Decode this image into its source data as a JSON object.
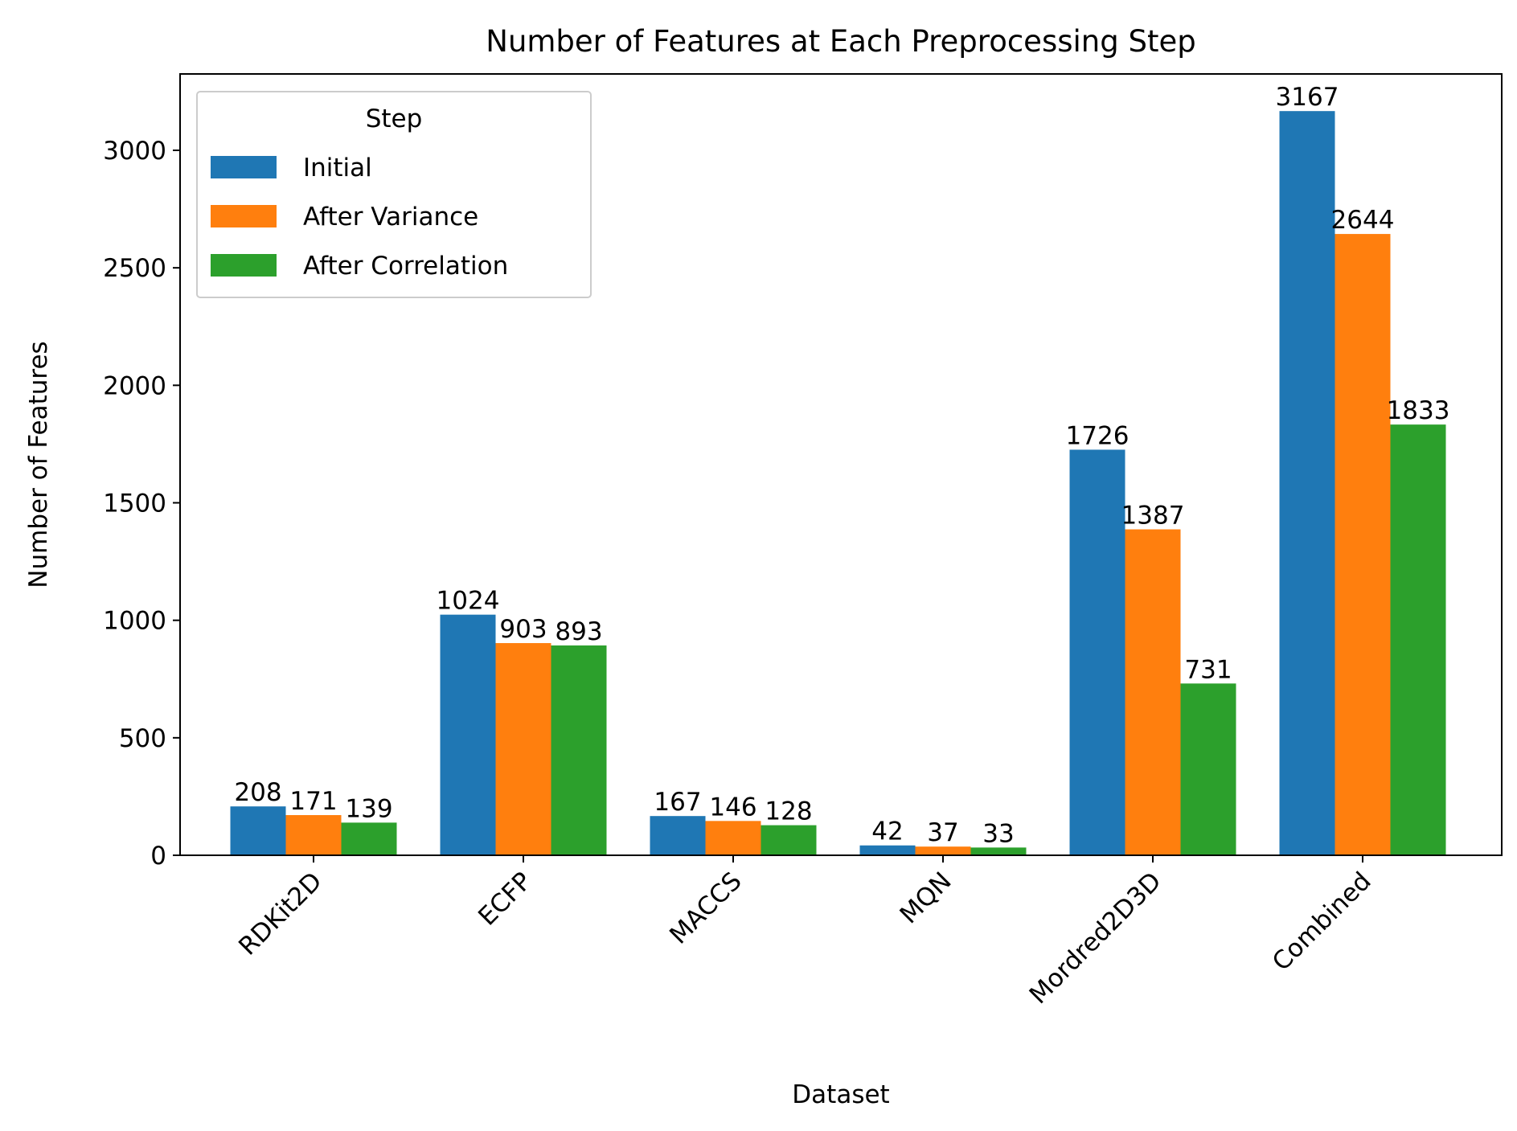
{
  "chart_data": {
    "type": "bar",
    "title": "Number of Features at Each Preprocessing Step",
    "xlabel": "Dataset",
    "ylabel": "Number of Features",
    "categories": [
      "RDKit2D",
      "ECFP",
      "MACCS",
      "MQN",
      "Mordred2D3D",
      "Combined"
    ],
    "series": [
      {
        "name": "Initial",
        "color": "#1f77b4",
        "values": [
          208,
          1024,
          167,
          42,
          1726,
          3167
        ]
      },
      {
        "name": "After Variance",
        "color": "#ff7f0e",
        "values": [
          171,
          903,
          146,
          37,
          1387,
          2644
        ]
      },
      {
        "name": "After Correlation",
        "color": "#2ca02c",
        "values": [
          139,
          893,
          128,
          33,
          731,
          1833
        ]
      }
    ],
    "ylim": [
      0,
      3325
    ],
    "yticks": [
      0,
      500,
      1000,
      1500,
      2000,
      2500,
      3000
    ],
    "legend": {
      "title": "Step",
      "placement": "upper-left"
    },
    "grid": false
  }
}
